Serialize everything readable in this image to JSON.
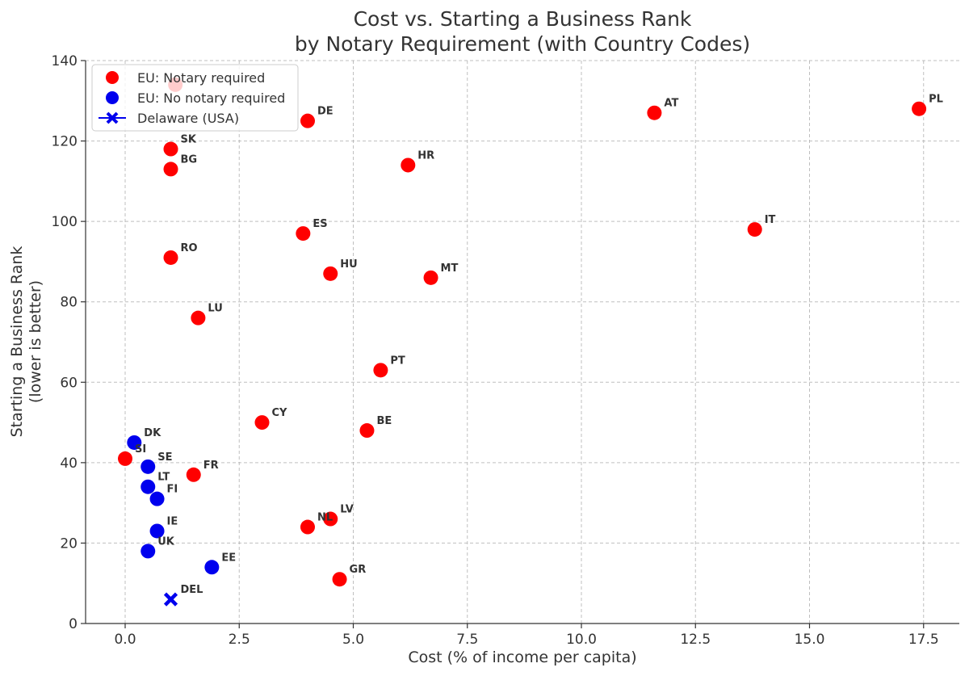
{
  "chart_data": {
    "type": "scatter",
    "title": [
      "Cost vs. Starting a Business Rank",
      "by Notary Requirement (with Country Codes)"
    ],
    "xlabel": "Cost (% of income per capita)",
    "ylabel": [
      "Starting a Business Rank",
      "(lower is better)"
    ],
    "xlim": [
      -0.8,
      18.3
    ],
    "ylim": [
      0,
      140
    ],
    "x_ticks": [
      0.0,
      2.5,
      5.0,
      7.5,
      10.0,
      12.5,
      15.0,
      17.5
    ],
    "x_tick_labels": [
      "0.0",
      "2.5",
      "5.0",
      "7.5",
      "10.0",
      "12.5",
      "15.0",
      "17.5"
    ],
    "y_ticks": [
      0,
      20,
      40,
      60,
      80,
      100,
      120,
      140
    ],
    "y_tick_labels": [
      "0",
      "20",
      "40",
      "60",
      "80",
      "100",
      "120",
      "140"
    ],
    "grid": true,
    "legend_position": "top-left",
    "series": [
      {
        "name": "EU: Notary required",
        "color": "#ff0000",
        "marker": "circle",
        "points": [
          {
            "code": "RO",
            "x": 1.0,
            "y": 91
          },
          {
            "code": "SK",
            "x": 1.0,
            "y": 118
          },
          {
            "code": "BG",
            "x": 1.0,
            "y": 113
          },
          {
            "code": "LU",
            "x": 1.6,
            "y": 76
          },
          {
            "code": "FR",
            "x": 1.5,
            "y": 37
          },
          {
            "code": "SI",
            "x": 0.0,
            "y": 41
          },
          {
            "code": "CY",
            "x": 3.0,
            "y": 50
          },
          {
            "code": "DE",
            "x": 4.0,
            "y": 125
          },
          {
            "code": "ES",
            "x": 3.9,
            "y": 97
          },
          {
            "code": "HU",
            "x": 4.5,
            "y": 87
          },
          {
            "code": "NL",
            "x": 4.0,
            "y": 24
          },
          {
            "code": "LV",
            "x": 4.5,
            "y": 26
          },
          {
            "code": "GR",
            "x": 4.7,
            "y": 11
          },
          {
            "code": "BE",
            "x": 5.3,
            "y": 48
          },
          {
            "code": "PT",
            "x": 5.6,
            "y": 63
          },
          {
            "code": "HR",
            "x": 6.2,
            "y": 114
          },
          {
            "code": "MT",
            "x": 6.7,
            "y": 86
          },
          {
            "code": "AT",
            "x": 11.6,
            "y": 127
          },
          {
            "code": "IT",
            "x": 13.8,
            "y": 98
          },
          {
            "code": "PL",
            "x": 17.4,
            "y": 128
          },
          {
            "code": "",
            "x": 1.1,
            "y": 134
          }
        ]
      },
      {
        "name": "EU: No notary required",
        "color": "#0000ee",
        "marker": "circle",
        "points": [
          {
            "code": "DK",
            "x": 0.2,
            "y": 45
          },
          {
            "code": "SE",
            "x": 0.5,
            "y": 39
          },
          {
            "code": "LT",
            "x": 0.5,
            "y": 34
          },
          {
            "code": "FI",
            "x": 0.7,
            "y": 31
          },
          {
            "code": "IE",
            "x": 0.7,
            "y": 23
          },
          {
            "code": "UK",
            "x": 0.5,
            "y": 18
          },
          {
            "code": "EE",
            "x": 1.9,
            "y": 14
          }
        ]
      },
      {
        "name": "Delaware (USA)",
        "color": "#0000ee",
        "marker": "x",
        "points": [
          {
            "code": "DEL",
            "x": 1.0,
            "y": 6
          }
        ]
      }
    ]
  }
}
